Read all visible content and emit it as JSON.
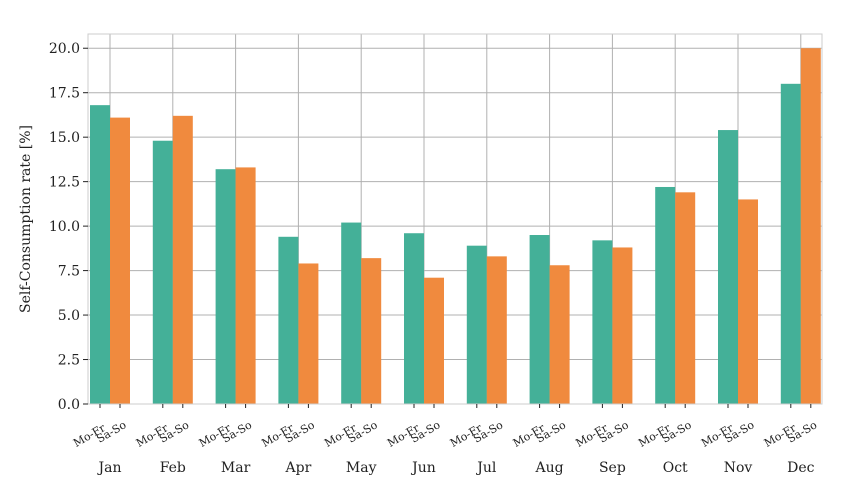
{
  "chart_data": {
    "type": "bar",
    "ylabel": "Self-Consumption rate [%]",
    "xlabel": "",
    "title": "",
    "ylim": [
      0,
      20.8
    ],
    "yticks": [
      "0.0",
      "2.5",
      "5.0",
      "7.5",
      "10.0",
      "12.5",
      "15.0",
      "17.5",
      "20.0"
    ],
    "ytick_values": [
      0,
      2.5,
      5,
      7.5,
      10,
      12.5,
      15,
      17.5,
      20
    ],
    "grid": true,
    "categories": [
      "Jan",
      "Feb",
      "Mar",
      "Apr",
      "May",
      "Jun",
      "Jul",
      "Aug",
      "Sep",
      "Oct",
      "Nov",
      "Dec"
    ],
    "bar_labels": [
      "Mo-Fr",
      "Sa-So"
    ],
    "series": [
      {
        "label": "Mo-Fr",
        "color": "#44b098",
        "values": [
          16.8,
          14.8,
          13.2,
          9.4,
          10.2,
          9.6,
          8.9,
          9.5,
          9.2,
          12.2,
          15.4,
          18.0
        ]
      },
      {
        "label": "Sa-So",
        "color": "#f08a3e",
        "values": [
          16.1,
          16.2,
          13.3,
          7.9,
          8.2,
          7.1,
          8.3,
          7.8,
          8.8,
          11.9,
          11.5,
          20.0
        ]
      }
    ]
  }
}
